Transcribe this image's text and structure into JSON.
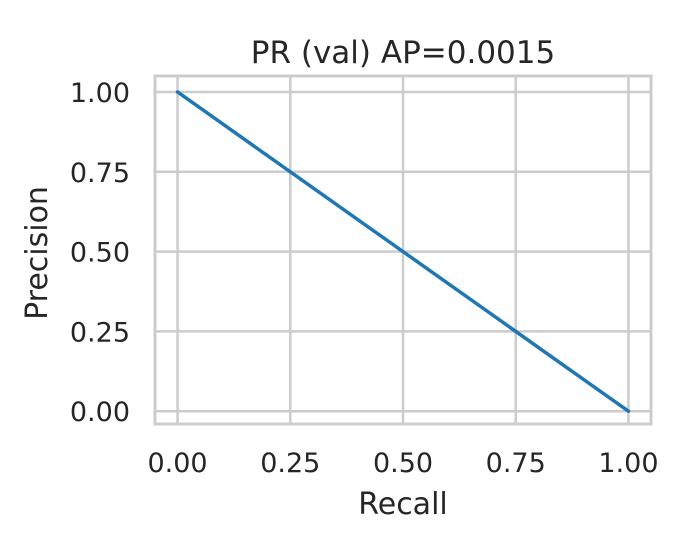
{
  "chart_data": {
    "type": "line",
    "title": "PR (val) AP=0.0015",
    "xlabel": "Recall",
    "ylabel": "Precision",
    "xlim": [
      -0.05,
      1.05
    ],
    "ylim": [
      -0.04,
      1.05
    ],
    "xticks": [
      0.0,
      0.25,
      0.5,
      0.75,
      1.0
    ],
    "yticks": [
      0.0,
      0.25,
      0.5,
      0.75,
      1.0
    ],
    "xtick_labels": [
      "0.00",
      "0.25",
      "0.50",
      "0.75",
      "1.00"
    ],
    "ytick_labels": [
      "0.00",
      "0.25",
      "0.50",
      "0.75",
      "1.00"
    ],
    "grid": true,
    "series": [
      {
        "x": [
          0.0,
          1.0
        ],
        "y": [
          1.0,
          0.0
        ],
        "color": "#1f77b4"
      }
    ]
  }
}
